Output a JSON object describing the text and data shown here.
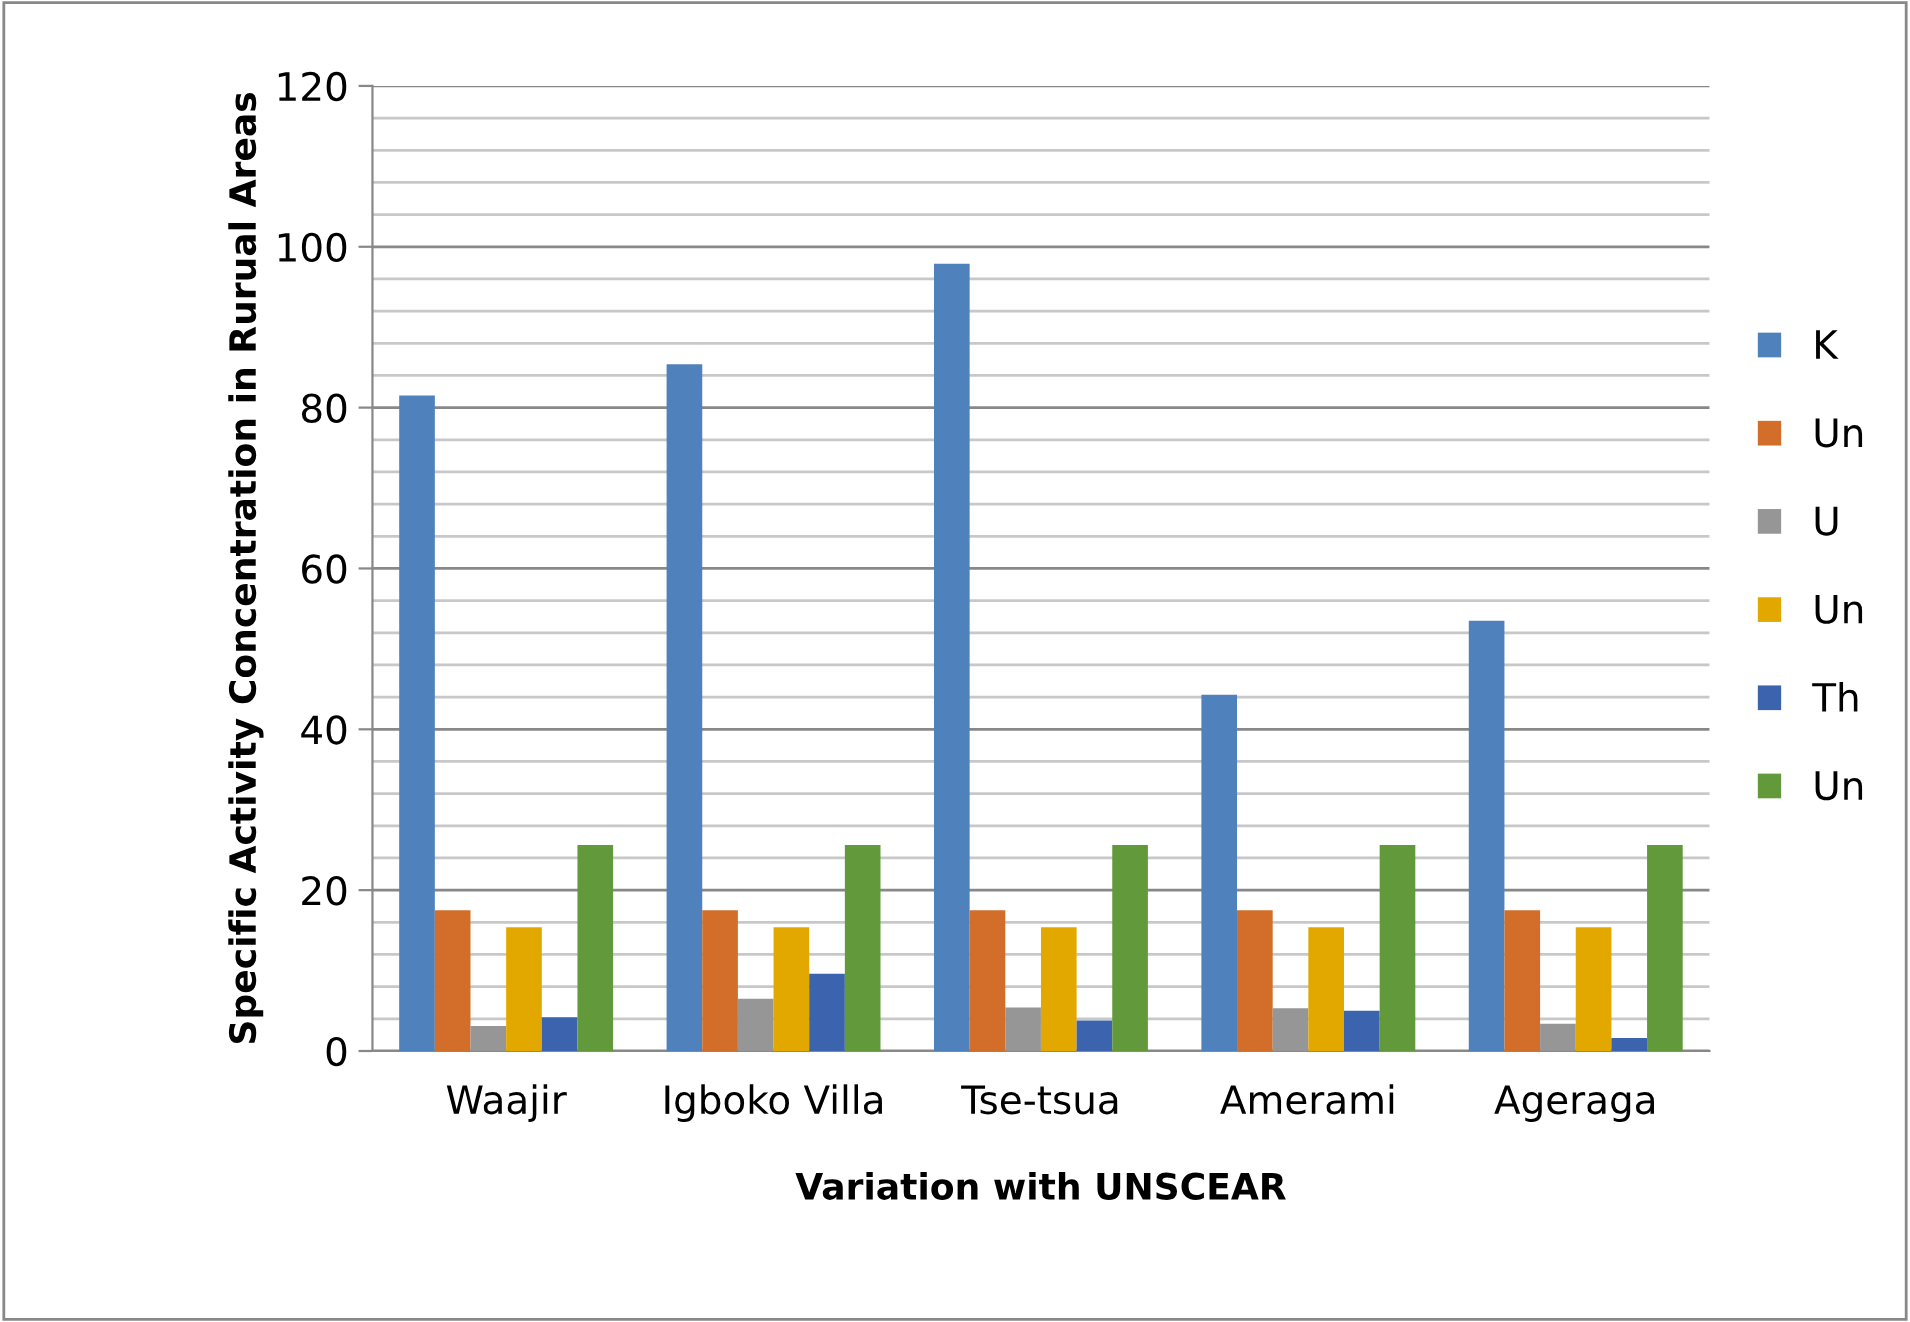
{
  "chart_data": {
    "type": "bar",
    "xlabel": "Variation with UNSCEAR",
    "ylabel": "Specific Activity Concentration in Rurual Areas",
    "categories": [
      "Waajir",
      "Igboko Villa",
      "Tse-tsua",
      "Amerami",
      "Ageraga"
    ],
    "series": [
      {
        "name": "K",
        "color": "#4f81bd",
        "values": [
          81.5,
          85.4,
          97.9,
          44.3,
          53.5
        ]
      },
      {
        "name": "Un",
        "color": "#d36e2a",
        "values": [
          17.5,
          17.5,
          17.5,
          17.5,
          17.5
        ]
      },
      {
        "name": "U",
        "color": "#969696",
        "values": [
          3.1,
          6.5,
          5.4,
          5.3,
          3.4
        ]
      },
      {
        "name": "Un",
        "color": "#e3a800",
        "values": [
          15.4,
          15.4,
          15.4,
          15.4,
          15.4
        ]
      },
      {
        "name": "Th",
        "color": "#3c64ae",
        "values": [
          4.2,
          9.6,
          3.8,
          5.0,
          1.6
        ]
      },
      {
        "name": "Un",
        "color": "#629a3b",
        "values": [
          25.6,
          25.6,
          25.6,
          25.6,
          25.6
        ]
      }
    ],
    "ylim": [
      0,
      120
    ],
    "yticks": [
      0,
      {
        "value": 4,
        "label": null
      },
      {
        "value": 8,
        "label": null
      },
      {
        "value": 12,
        "label": null
      },
      {
        "value": 16,
        "label": null
      },
      20,
      {
        "value": 24,
        "label": null
      },
      {
        "value": 28,
        "label": null
      },
      {
        "value": 32,
        "label": null
      },
      {
        "value": 36,
        "label": null
      },
      40,
      {
        "value": 44,
        "label": null
      },
      {
        "value": 48,
        "label": null
      },
      {
        "value": 52,
        "label": null
      },
      {
        "value": 56,
        "label": null
      },
      60,
      {
        "value": 64,
        "label": null
      },
      {
        "value": 68,
        "label": null
      },
      {
        "value": 72,
        "label": null
      },
      {
        "value": 76,
        "label": null
      },
      80,
      {
        "value": 84,
        "label": null
      },
      {
        "value": 88,
        "label": null
      },
      {
        "value": 92,
        "label": null
      },
      {
        "value": 96,
        "label": null
      },
      100,
      {
        "value": 104,
        "label": null
      },
      {
        "value": 108,
        "label": null
      },
      {
        "value": 112,
        "label": null
      },
      {
        "value": 116,
        "label": null
      },
      120
    ],
    "grid": "y",
    "legend": "right"
  }
}
